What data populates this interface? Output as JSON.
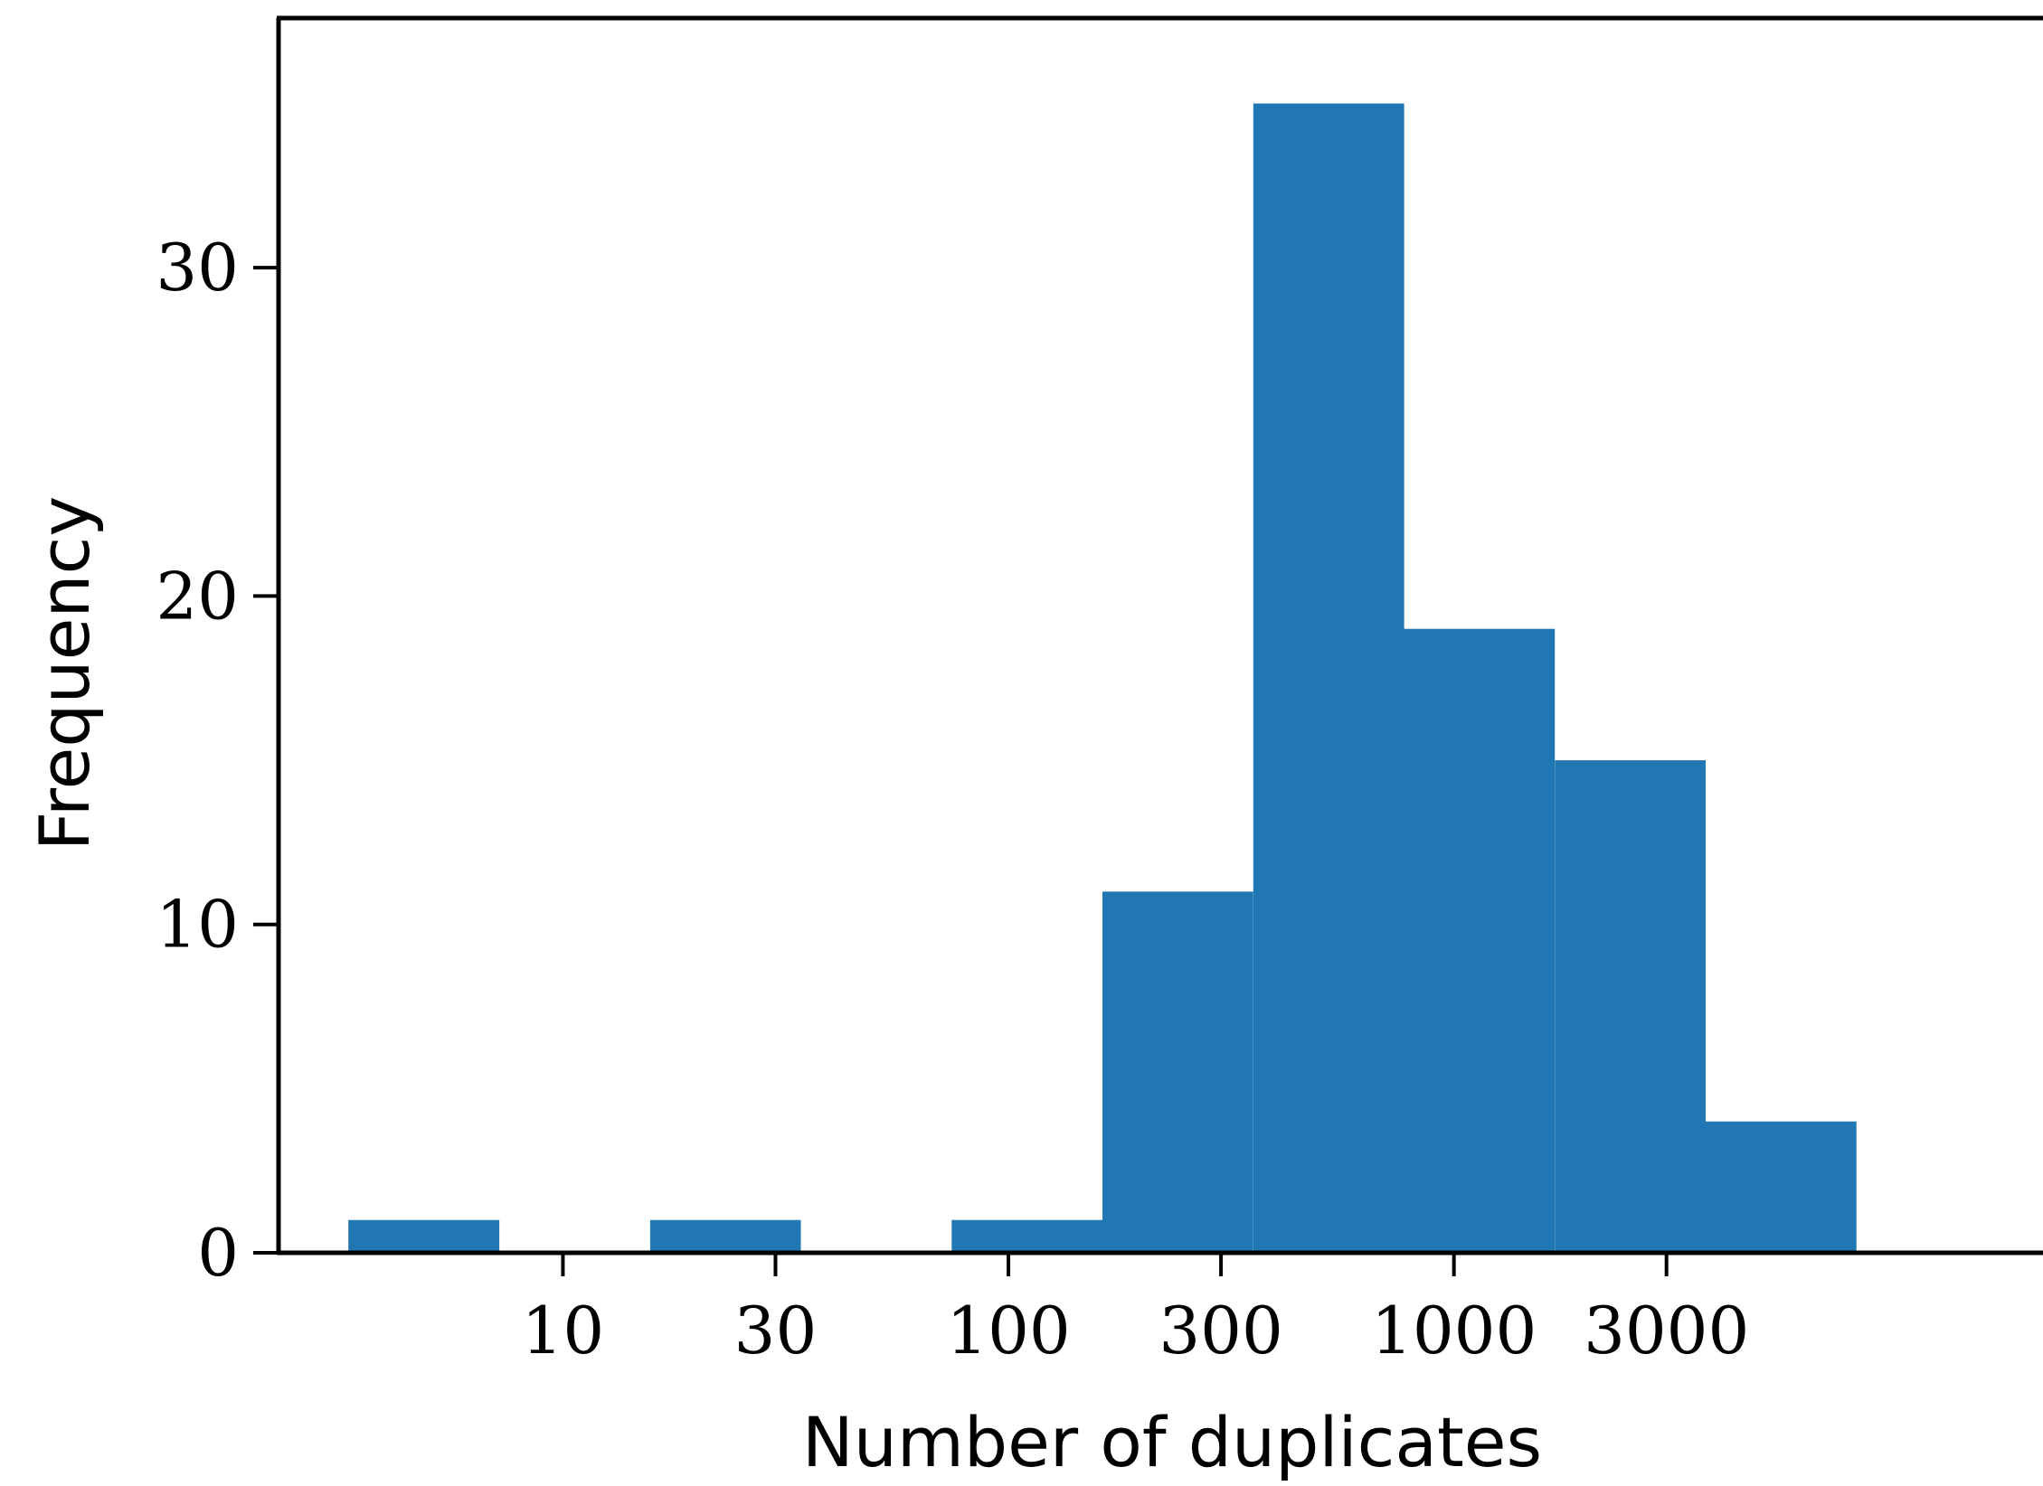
{
  "chart_data": {
    "type": "bar",
    "title": "",
    "xlabel": "Number of duplicates",
    "ylabel": "Frequency",
    "x_scale": "log",
    "x_ticks": [
      10,
      30,
      100,
      300,
      1000,
      3000
    ],
    "x_tick_labels": [
      "10",
      "30",
      "100",
      "300",
      "1000",
      "3000"
    ],
    "y_ticks": [
      0,
      10,
      20,
      30
    ],
    "y_tick_labels": [
      "0",
      "10",
      "20",
      "30"
    ],
    "ylim": [
      0,
      37.6
    ],
    "xlim": [
      2.3,
      21000
    ],
    "grid": false,
    "bar_color": "#2077b4",
    "bins": [
      {
        "x0": 3.3,
        "x1": 7.2,
        "count": 1
      },
      {
        "x0": 7.2,
        "x1": 15.7,
        "count": 0
      },
      {
        "x0": 15.7,
        "x1": 34.2,
        "count": 1
      },
      {
        "x0": 34.2,
        "x1": 74.6,
        "count": 0
      },
      {
        "x0": 74.6,
        "x1": 162.6,
        "count": 1
      },
      {
        "x0": 162.6,
        "x1": 354.5,
        "count": 11
      },
      {
        "x0": 354.5,
        "x1": 772.9,
        "count": 35
      },
      {
        "x0": 772.9,
        "x1": 1684.9,
        "count": 19
      },
      {
        "x0": 1684.9,
        "x1": 3673.2,
        "count": 15
      },
      {
        "x0": 3673.2,
        "x1": 8007.8,
        "count": 4
      }
    ]
  }
}
